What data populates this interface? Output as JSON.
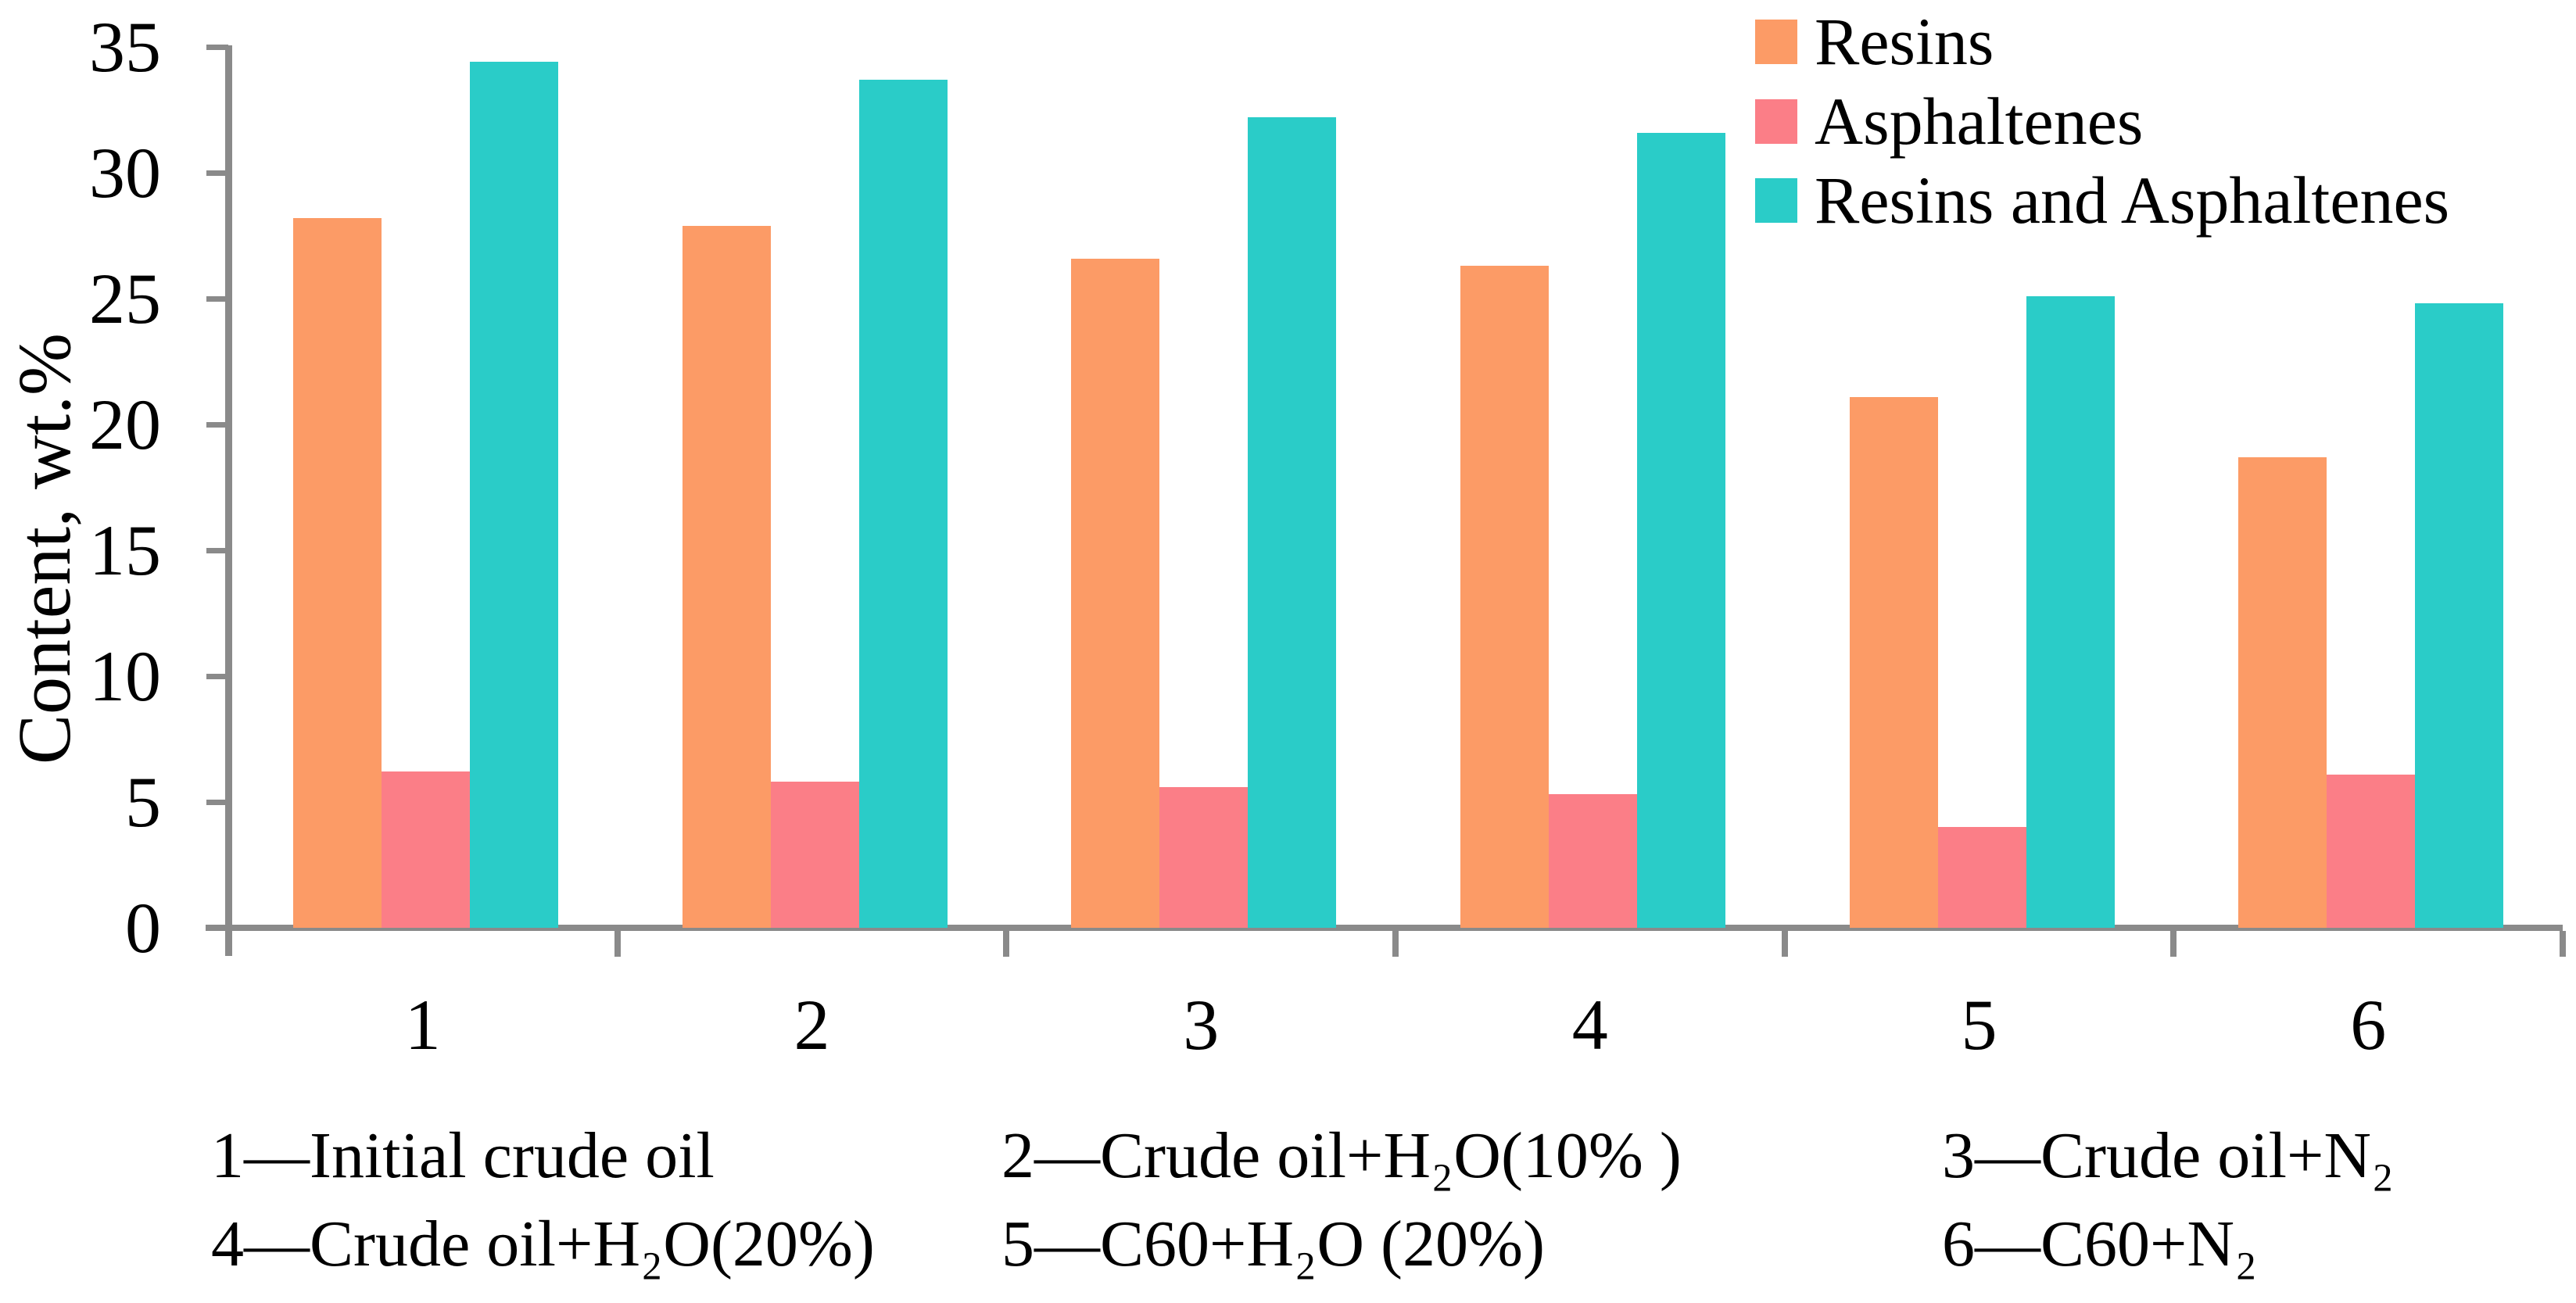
{
  "chart_data": {
    "type": "bar",
    "title": "",
    "categories": [
      "1",
      "2",
      "3",
      "4",
      "5",
      "6"
    ],
    "series": [
      {
        "name": "Resins",
        "color": "#FC9B66",
        "values": [
          28.2,
          27.9,
          26.6,
          26.3,
          21.1,
          18.7
        ]
      },
      {
        "name": "Asphaltenes",
        "color": "#FB7E87",
        "values": [
          6.2,
          5.8,
          5.6,
          5.3,
          4.0,
          6.1
        ]
      },
      {
        "name": "Resins and Asphaltenes",
        "color": "#2ACCC8",
        "values": [
          34.4,
          33.7,
          32.2,
          31.6,
          25.1,
          24.8
        ]
      }
    ],
    "xlabel": "",
    "ylabel": "Content, wt.%",
    "ylim": [
      0,
      35
    ],
    "yticks": [
      0,
      5,
      10,
      15,
      20,
      25,
      30,
      35
    ],
    "grid": false,
    "legend_position": "top-right",
    "axis_color": "#8A8A8A",
    "text_color": "#000000"
  },
  "footnotes": {
    "rows": [
      [
        "1—Initial crude oil",
        "2—Crude oil+H₂O(10% )",
        "3—Crude oil+N₂"
      ],
      [
        "4—Crude oil+H₂O(20%)",
        "5—C60+H₂O (20%)",
        "6—C60+N₂"
      ]
    ]
  }
}
